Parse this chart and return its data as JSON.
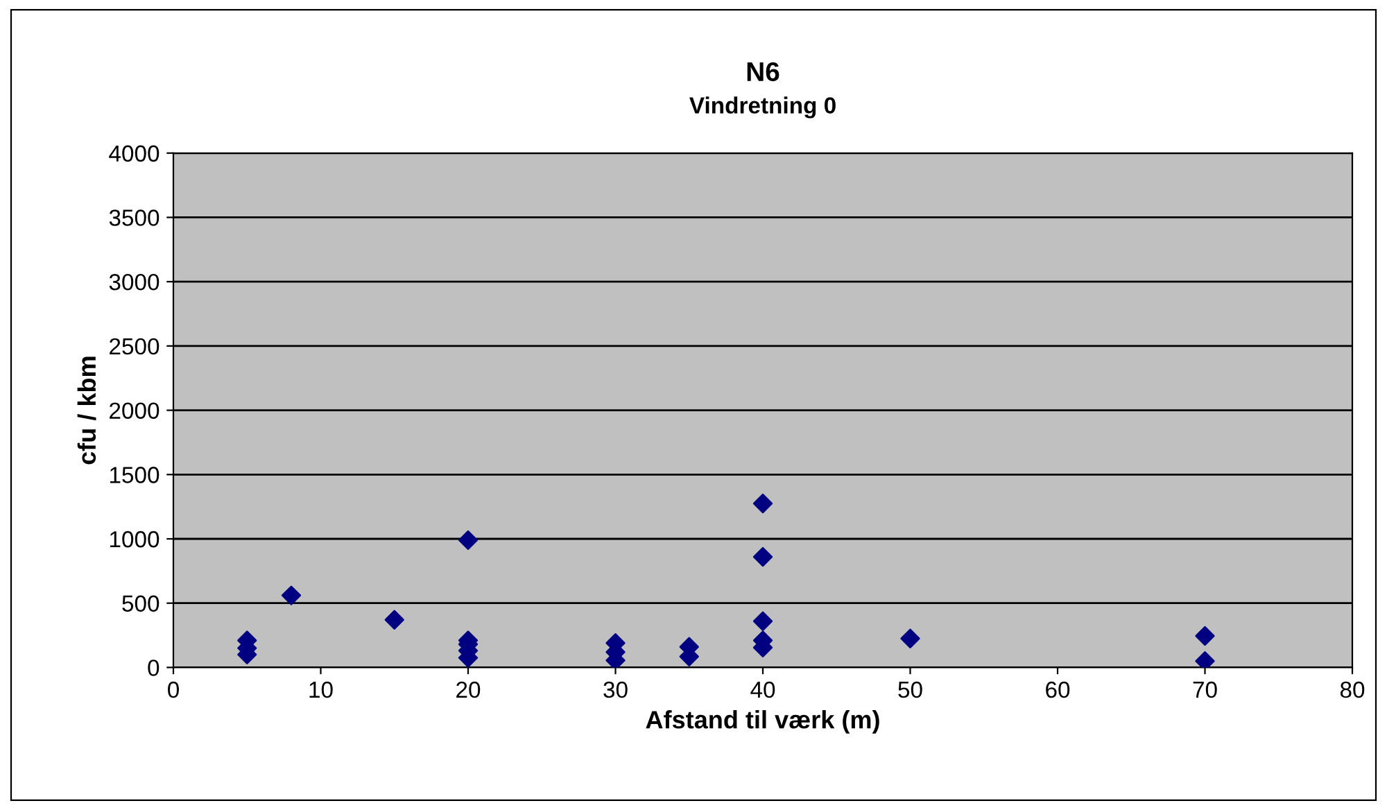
{
  "chart_data": {
    "type": "scatter",
    "title": "N6",
    "subtitle": "Vindretning 0",
    "xlabel": "Afstand til værk (m)",
    "ylabel": "cfu / kbm",
    "series": [
      {
        "color": "#000080",
        "x": [
          5,
          5,
          5,
          8,
          15,
          20,
          20,
          20,
          20,
          20,
          30,
          30,
          30,
          35,
          35,
          40,
          40,
          40,
          40,
          40,
          50,
          70,
          70
        ],
        "values": [
          210,
          150,
          100,
          560,
          370,
          990,
          210,
          180,
          130,
          75,
          190,
          120,
          55,
          160,
          85,
          1275,
          860,
          360,
          210,
          155,
          225,
          245,
          50
        ]
      }
    ],
    "xlim": [
      0,
      80
    ],
    "xticks": [
      0,
      10,
      20,
      30,
      40,
      50,
      60,
      70,
      80
    ],
    "ylim": [
      0,
      4000
    ],
    "yticks": [
      0,
      500,
      1000,
      1500,
      2000,
      2500,
      3000,
      3500,
      4000
    ],
    "grid": "y",
    "marker": "diamond",
    "legend": false
  }
}
